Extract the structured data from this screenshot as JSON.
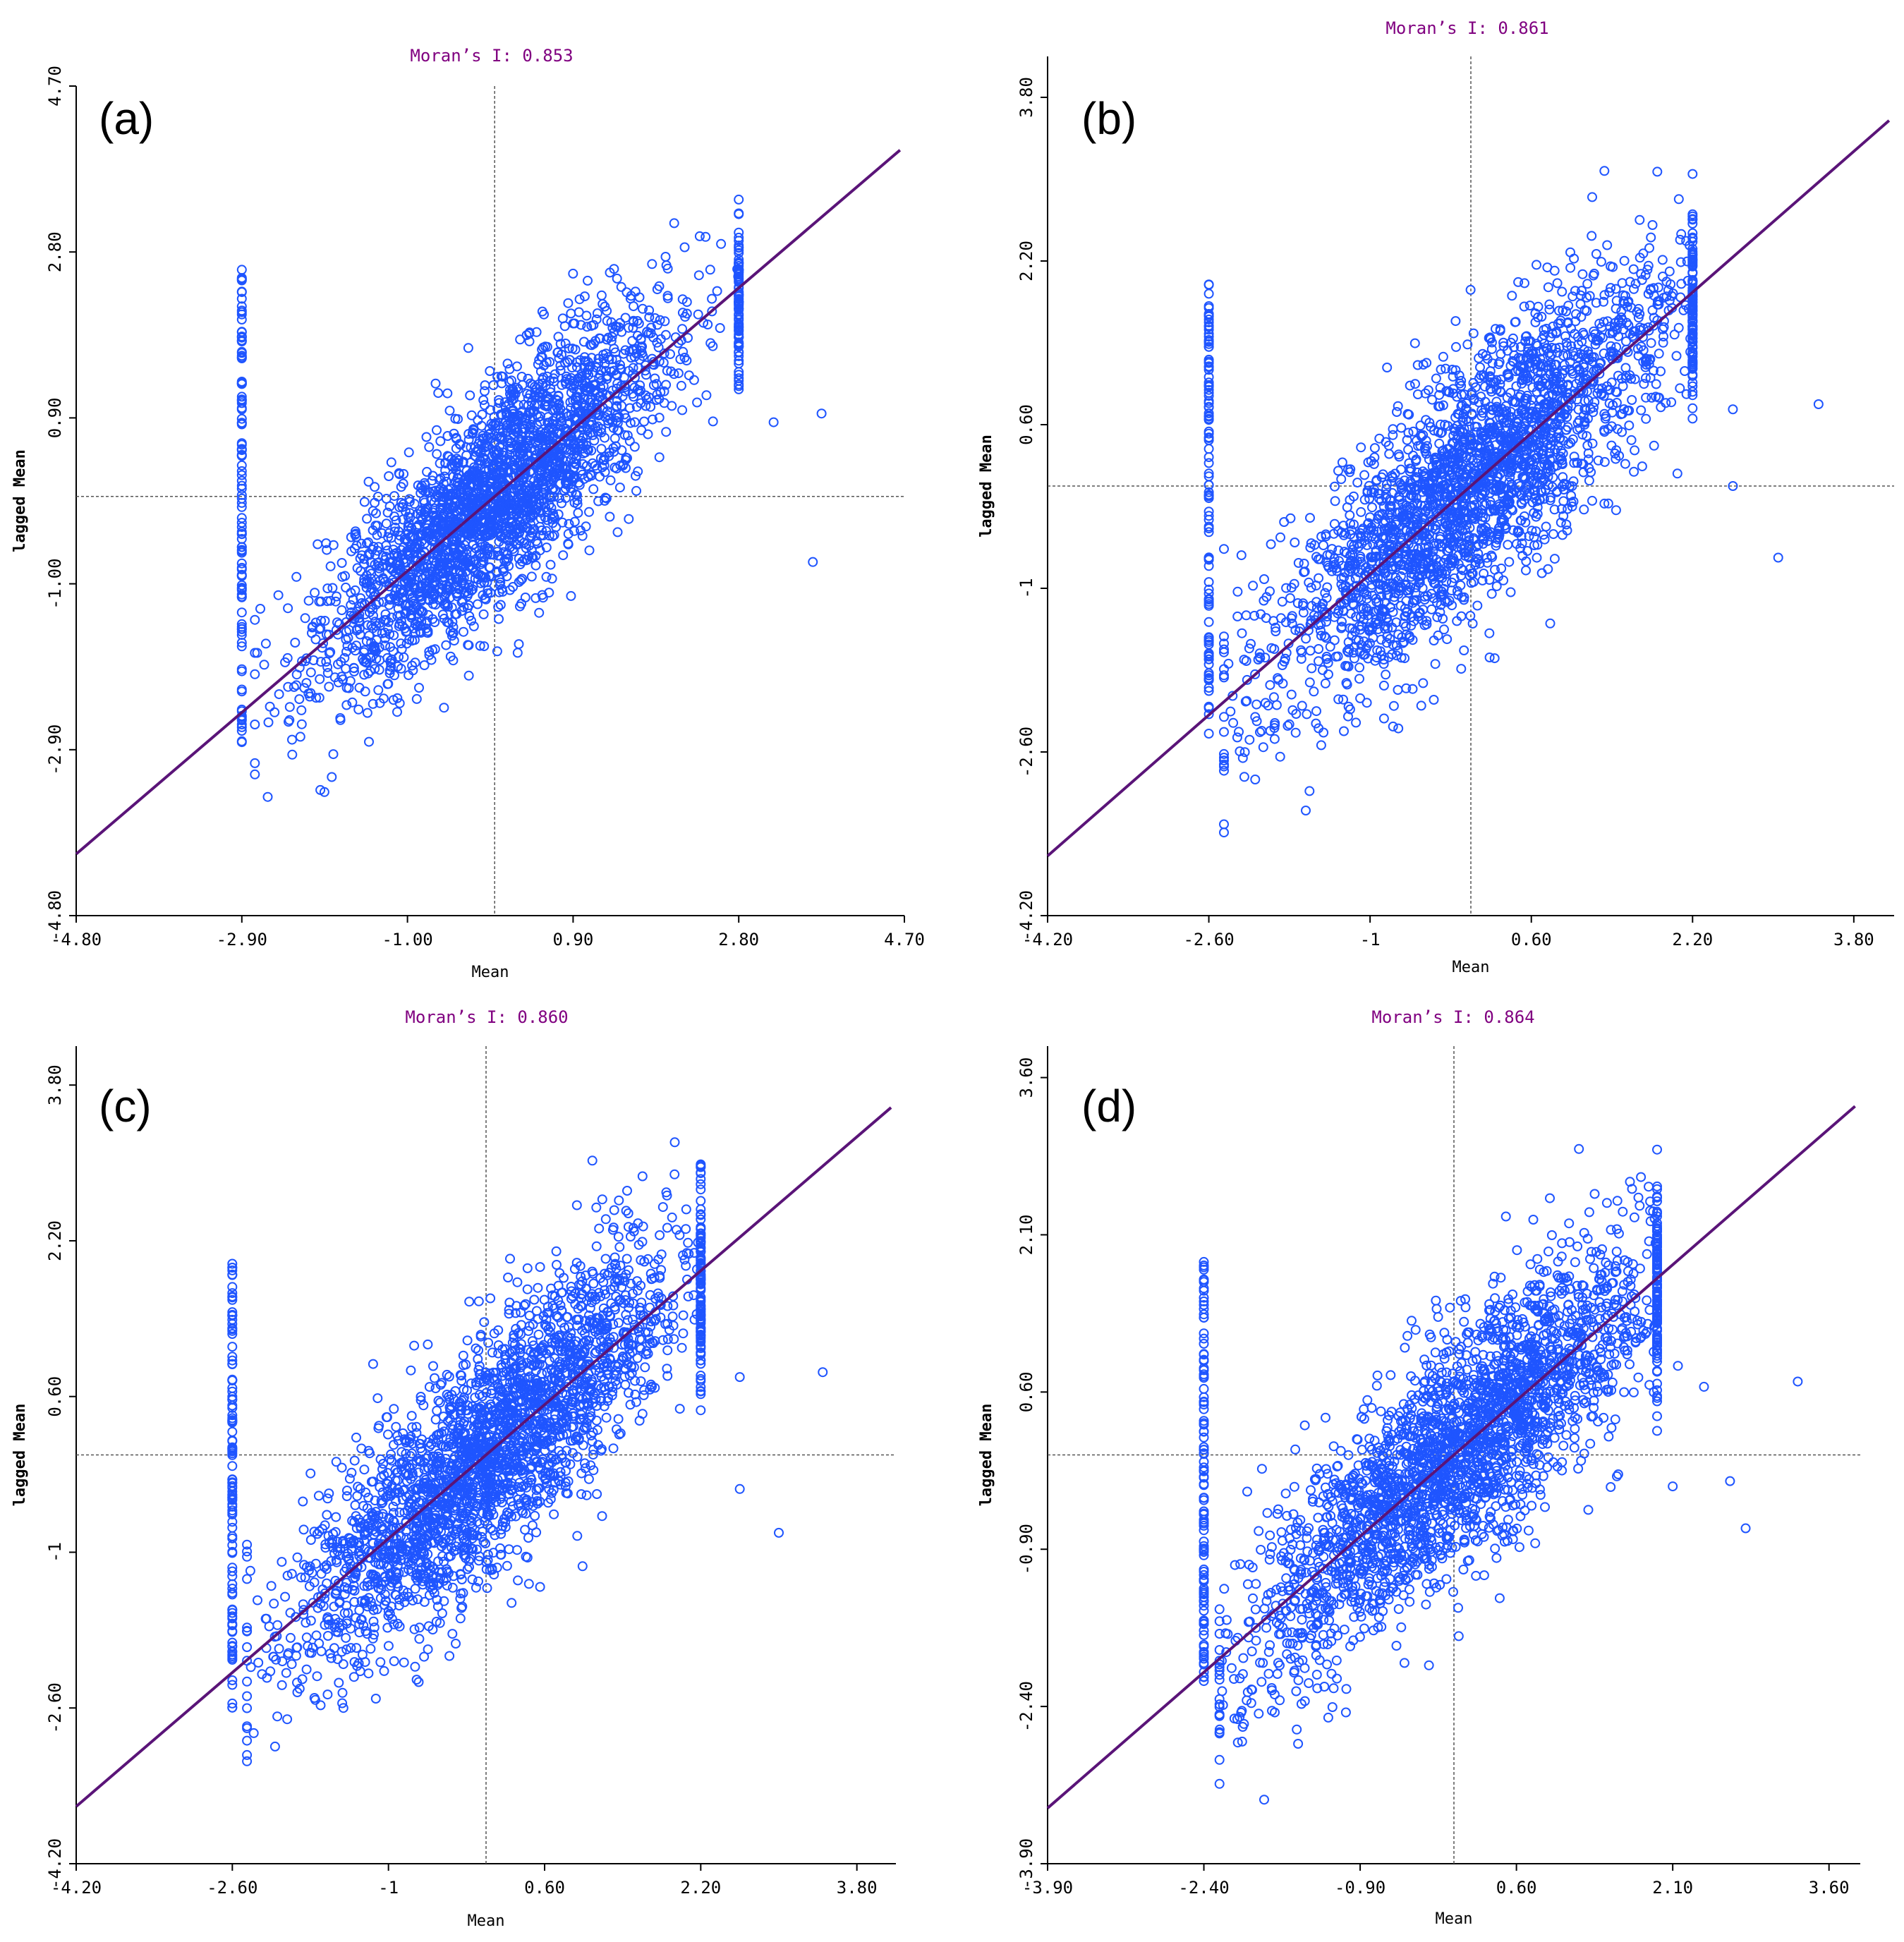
{
  "chart_data": [
    {
      "type": "scatter",
      "panel": "(a)",
      "title": "Moran’s I: 0.853",
      "xlabel": "Mean",
      "ylabel": "lagged Mean",
      "xlim": [
        -4.8,
        4.7
      ],
      "ylim": [
        -4.8,
        4.7
      ],
      "xticks": [
        -4.8,
        -2.9,
        -1.0,
        0.9,
        2.8,
        4.7
      ],
      "xtick_labels": [
        "-4.80",
        "-2.90",
        "-1.00",
        "0.90",
        "2.80",
        "4.70"
      ],
      "yticks": [
        -4.8,
        -2.9,
        -1.0,
        0.9,
        2.8,
        4.7
      ],
      "ytick_labels": [
        "-4.80",
        "-2.90",
        "-1.00",
        "0.90",
        "2.80",
        "4.70"
      ],
      "slope": 0.853,
      "x_range": [
        -2.9,
        2.8
      ],
      "y_spread": 0.6,
      "min_stripe_x": -2.9,
      "stripe_y": [
        -2.9,
        2.6
      ],
      "outliers": [
        [
          3.2,
          0.85
        ],
        [
          3.75,
          0.95
        ],
        [
          3.65,
          -0.75
        ]
      ]
    },
    {
      "type": "scatter",
      "panel": "(b)",
      "title": "Moran’s I: 0.861",
      "xlabel": "Mean",
      "ylabel": "lagged Mean",
      "xlim": [
        -4.2,
        4.2
      ],
      "ylim": [
        -4.2,
        4.2
      ],
      "xticks": [
        -4.2,
        -2.6,
        -1.0,
        0.6,
        2.2,
        3.8
      ],
      "xtick_labels": [
        "-4.20",
        "-2.60",
        "-1",
        "0.60",
        "2.20",
        "3.80"
      ],
      "yticks": [
        -4.2,
        -2.6,
        -1.0,
        0.6,
        2.2,
        3.8
      ],
      "ytick_labels": [
        "-4.20",
        "-2.60",
        "-1",
        "0.60",
        "2.20",
        "3.80"
      ],
      "slope": 0.861,
      "x_range": [
        -2.6,
        2.2
      ],
      "y_spread": 0.6,
      "min_stripe_x": -2.6,
      "stripe_y": [
        -2.5,
        2.0
      ],
      "outliers": [
        [
          2.6,
          0.75
        ],
        [
          3.45,
          0.8
        ],
        [
          2.6,
          0.0
        ],
        [
          3.05,
          -0.7
        ]
      ]
    },
    {
      "type": "scatter",
      "panel": "(c)",
      "title": "Moran’s I: 0.860",
      "xlabel": "Mean",
      "ylabel": "lagged Mean",
      "xlim": [
        -4.2,
        4.2
      ],
      "ylim": [
        -4.2,
        4.2
      ],
      "xticks": [
        -4.2,
        -2.6,
        -1.0,
        0.6,
        2.2,
        3.8
      ],
      "xtick_labels": [
        "-4.20",
        "-2.60",
        "-1",
        "0.60",
        "2.20",
        "3.80"
      ],
      "yticks": [
        -4.2,
        -2.6,
        -1.0,
        0.6,
        2.2,
        3.8
      ],
      "ytick_labels": [
        "-4.20",
        "-2.60",
        "-1",
        "0.60",
        "2.20",
        "3.80"
      ],
      "slope": 0.86,
      "x_range": [
        -2.6,
        2.2
      ],
      "y_spread": 0.6,
      "min_stripe_x": -2.6,
      "stripe_y": [
        -2.6,
        2.0
      ],
      "outliers": [
        [
          2.6,
          0.8
        ],
        [
          3.45,
          0.85
        ],
        [
          2.6,
          -0.35
        ],
        [
          3.0,
          -0.8
        ]
      ]
    },
    {
      "type": "scatter",
      "panel": "(d)",
      "title": "Moran’s I: 0.864",
      "xlabel": "Mean",
      "ylabel": "lagged Mean",
      "xlim": [
        -3.9,
        3.9
      ],
      "ylim": [
        -3.9,
        3.9
      ],
      "xticks": [
        -3.9,
        -2.4,
        -0.9,
        0.6,
        2.1,
        3.6
      ],
      "xtick_labels": [
        "-3.90",
        "-2.40",
        "-0.90",
        "0.60",
        "2.10",
        "3.60"
      ],
      "yticks": [
        -3.9,
        -2.4,
        -0.9,
        0.6,
        2.1,
        3.6
      ],
      "ytick_labels": [
        "-3.90",
        "-2.40",
        "-0.90",
        "0.60",
        "2.10",
        "3.60"
      ],
      "slope": 0.864,
      "x_range": [
        -2.4,
        1.95
      ],
      "y_spread": 0.55,
      "min_stripe_x": -2.4,
      "stripe_y": [
        -2.5,
        1.9
      ],
      "outliers": [
        [
          2.15,
          0.85
        ],
        [
          2.4,
          0.65
        ],
        [
          3.3,
          0.7
        ],
        [
          2.65,
          -0.25
        ],
        [
          2.8,
          -0.7
        ],
        [
          2.1,
          -0.3
        ]
      ]
    }
  ],
  "style": {
    "point_color": "#1f55ff",
    "line_color": "#5a1478",
    "title_color": "#800080",
    "dash_color": "#555555"
  }
}
